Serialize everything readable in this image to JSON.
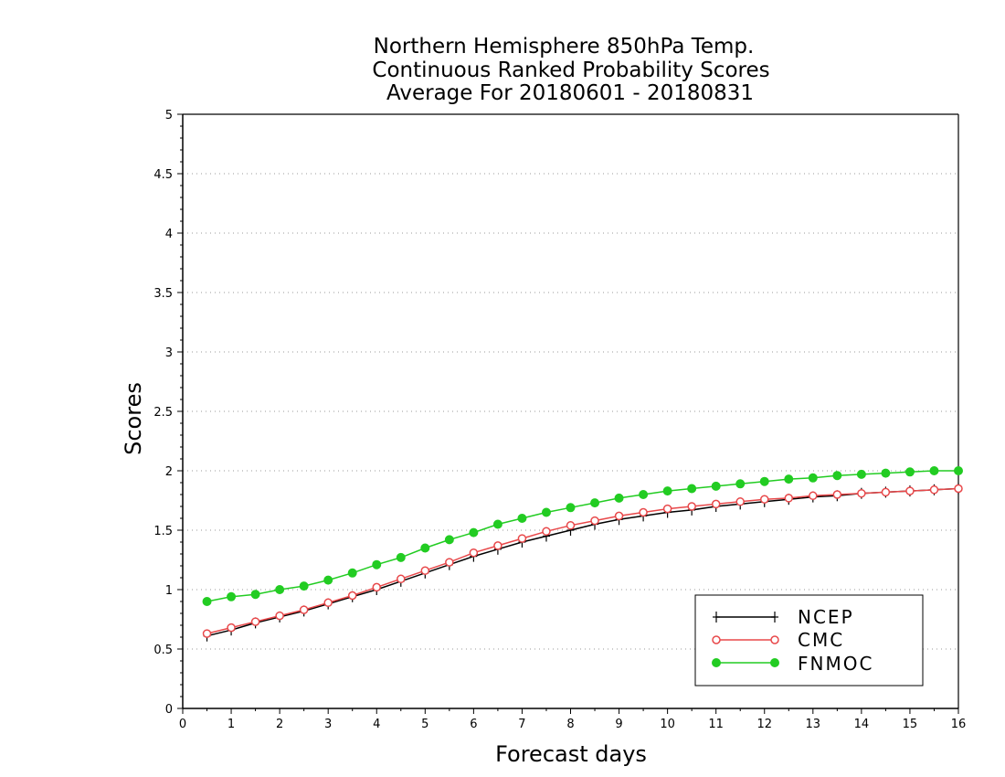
{
  "chart_data": {
    "type": "line",
    "title_lines": [
      "Northern Hemisphere 850hPa Temp.",
      "Continuous Ranked Probability Scores",
      "Average For 20180601 - 20180831"
    ],
    "xlabel": "Forecast days",
    "ylabel": "Scores",
    "xlim": [
      0,
      16
    ],
    "ylim": [
      0,
      5
    ],
    "xticks": [
      0,
      1,
      2,
      3,
      4,
      5,
      6,
      7,
      8,
      9,
      10,
      11,
      12,
      13,
      14,
      15,
      16
    ],
    "yticks": [
      0,
      0.5,
      1,
      1.5,
      2,
      2.5,
      3,
      3.5,
      4,
      4.5,
      5
    ],
    "ytick_labels": [
      "0",
      "0.5",
      "1",
      "1.5",
      "2",
      "2.5",
      "3",
      "3.5",
      "4",
      "4.5",
      "5"
    ],
    "grid": true,
    "legend_position": "bottom-right",
    "x": [
      0.5,
      1.0,
      1.5,
      2.0,
      2.5,
      3.0,
      3.5,
      4.0,
      4.5,
      5.0,
      5.5,
      6.0,
      6.5,
      7.0,
      7.5,
      8.0,
      8.5,
      9.0,
      9.5,
      10.0,
      10.5,
      11.0,
      11.5,
      12.0,
      12.5,
      13.0,
      13.5,
      14.0,
      14.5,
      15.0,
      15.5,
      16.0
    ],
    "series": [
      {
        "name": "NCEP",
        "color": "#000000",
        "marker": "plus",
        "values": [
          0.61,
          0.66,
          0.72,
          0.77,
          0.82,
          0.88,
          0.94,
          1.0,
          1.07,
          1.14,
          1.21,
          1.28,
          1.34,
          1.4,
          1.45,
          1.5,
          1.55,
          1.59,
          1.62,
          1.65,
          1.67,
          1.7,
          1.72,
          1.74,
          1.76,
          1.78,
          1.79,
          1.81,
          1.82,
          1.83,
          1.84,
          1.85
        ]
      },
      {
        "name": "CMC",
        "color": "#e8484a",
        "marker": "open-circle",
        "values": [
          0.63,
          0.68,
          0.73,
          0.78,
          0.83,
          0.89,
          0.95,
          1.02,
          1.09,
          1.16,
          1.23,
          1.31,
          1.37,
          1.43,
          1.49,
          1.54,
          1.58,
          1.62,
          1.65,
          1.68,
          1.7,
          1.72,
          1.74,
          1.76,
          1.77,
          1.79,
          1.8,
          1.81,
          1.82,
          1.83,
          1.84,
          1.85
        ]
      },
      {
        "name": "FNMOC",
        "color": "#22cc22",
        "marker": "filled-circle",
        "values": [
          0.9,
          0.94,
          0.96,
          1.0,
          1.03,
          1.08,
          1.14,
          1.21,
          1.27,
          1.35,
          1.42,
          1.48,
          1.55,
          1.6,
          1.65,
          1.69,
          1.73,
          1.77,
          1.8,
          1.83,
          1.85,
          1.87,
          1.89,
          1.91,
          1.93,
          1.94,
          1.96,
          1.97,
          1.98,
          1.99,
          2.0,
          2.0
        ]
      }
    ]
  }
}
